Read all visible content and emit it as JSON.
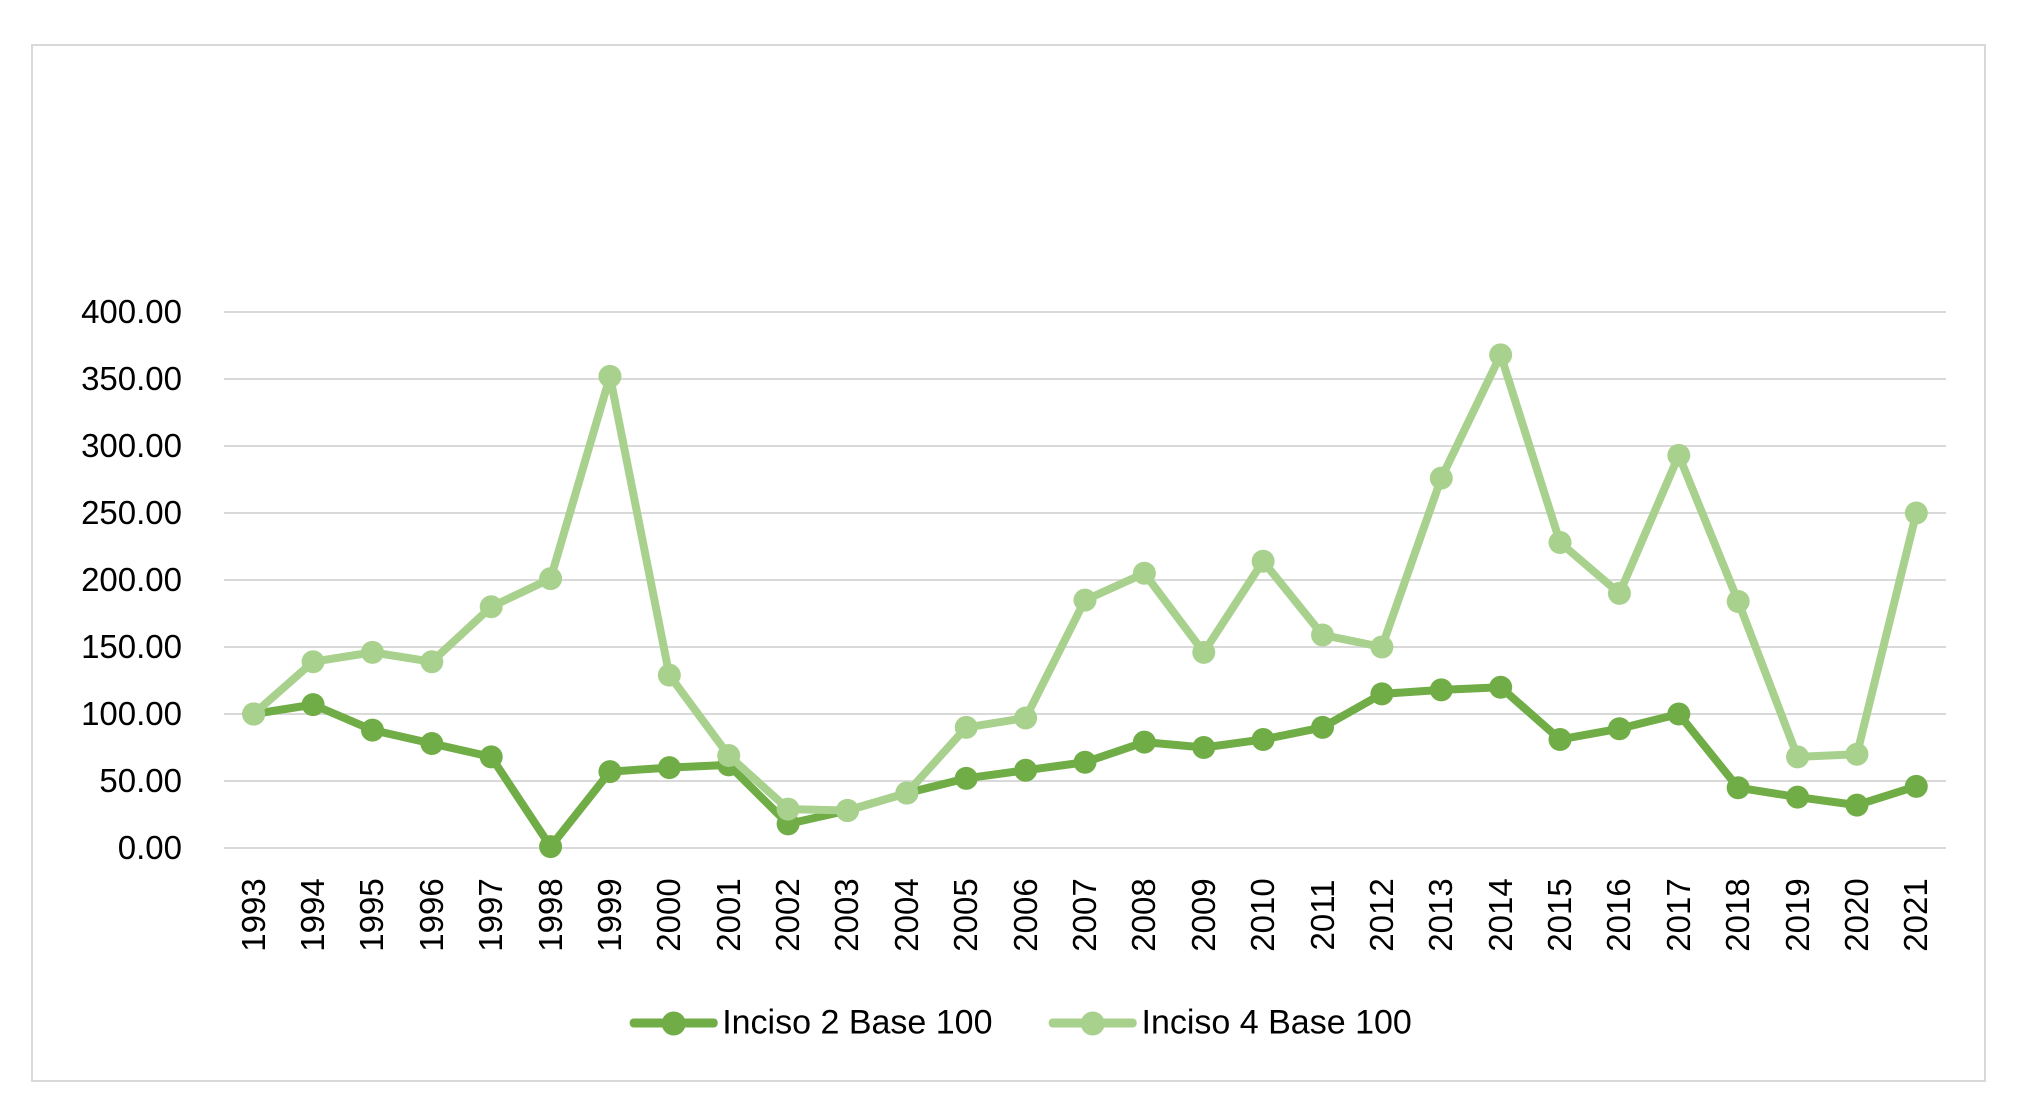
{
  "chart_data": {
    "type": "line",
    "title": "",
    "categories": [
      "1993",
      "1994",
      "1995",
      "1996",
      "1997",
      "1998",
      "1999",
      "2000",
      "2001",
      "2002",
      "2003",
      "2004",
      "2005",
      "2006",
      "2007",
      "2008",
      "2009",
      "2010",
      "2011",
      "2012",
      "2013",
      "2014",
      "2015",
      "2016",
      "2017",
      "2018",
      "2019",
      "2020",
      "2021"
    ],
    "series": [
      {
        "name": "Inciso 2 Base 100",
        "color": "#70AD47",
        "values": [
          100,
          107,
          88,
          78,
          68,
          1,
          57,
          60,
          62,
          18,
          28,
          41,
          52,
          58,
          64,
          79,
          75,
          81,
          90,
          115,
          118,
          120,
          81,
          89,
          100,
          45,
          38,
          32,
          46
        ]
      },
      {
        "name": "Inciso 4 Base 100",
        "color": "#A9D18E",
        "values": [
          100,
          139,
          146,
          139,
          180,
          201,
          352,
          129,
          69,
          29,
          28,
          41,
          90,
          97,
          185,
          205,
          146,
          214,
          159,
          150,
          276,
          368,
          228,
          190,
          293,
          184,
          68,
          70,
          250
        ]
      }
    ],
    "xlabel": "",
    "ylabel": "",
    "ylim": [
      0,
      400
    ],
    "ytick_step": 50,
    "ytick_labels": [
      "0.00",
      "50.00",
      "100.00",
      "150.00",
      "200.00",
      "250.00",
      "300.00",
      "350.00",
      "400.00"
    ],
    "grid": "horizontal-only",
    "gridline_color": "#D9D9D9",
    "axis_text_color": "#000000",
    "legend_position": "bottom"
  }
}
